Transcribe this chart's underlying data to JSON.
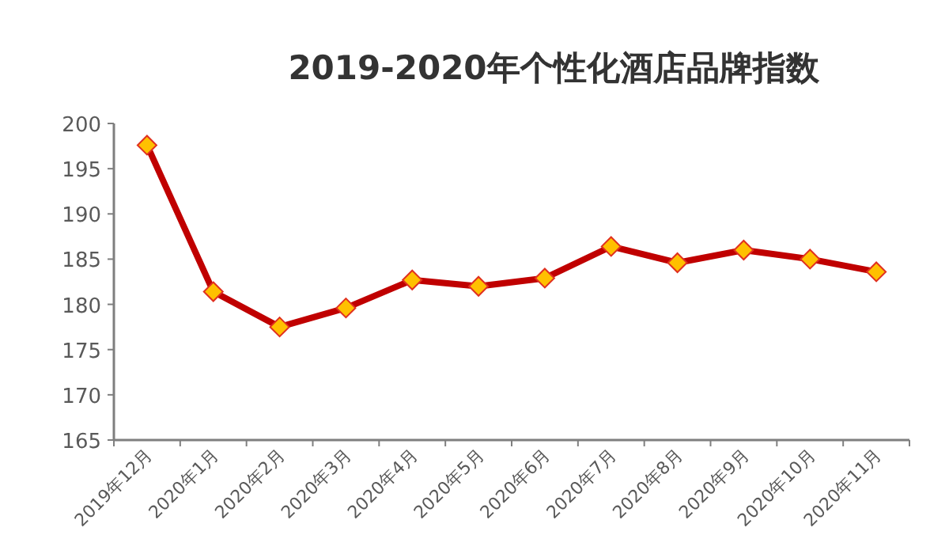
{
  "chart_data": {
    "type": "line",
    "title": "2019-2020年个性化酒店品牌指数",
    "categories": [
      "2019年12月",
      "2020年1月",
      "2020年2月",
      "2020年3月",
      "2020年4月",
      "2020年5月",
      "2020年6月",
      "2020年7月",
      "2020年8月",
      "2020年9月",
      "2020年10月",
      "2020年11月"
    ],
    "series": [
      {
        "color": "#c00000",
        "values": [
          197.6,
          181.4,
          177.5,
          179.6,
          182.7,
          182.0,
          182.9,
          186.4,
          184.6,
          186.0,
          185.0,
          183.6
        ]
      }
    ],
    "ylim": [
      165,
      200
    ],
    "yticks": [
      165,
      170,
      175,
      180,
      185,
      190,
      195,
      200
    ],
    "grid": false,
    "marker": "diamond",
    "line_style": "solid"
  }
}
